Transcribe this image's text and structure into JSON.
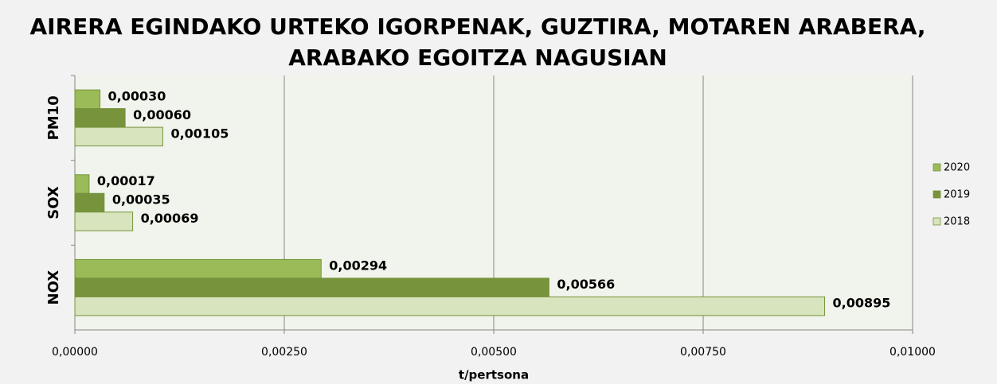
{
  "chart_data": {
    "type": "bar",
    "orientation": "horizontal",
    "title": "AIRERA EGINDAKO URTEKO IGORPENAK, GUZTIRA, MOTAREN ARABERA, ARABAKO EGOITZA NAGUSIAN",
    "x_label": "t/pertsona",
    "categories": [
      "PM10",
      "SOX",
      "NOX"
    ],
    "series": [
      {
        "name": "2020",
        "color": "#9bbb59",
        "values": [
          0.0003,
          0.00017,
          0.00294
        ],
        "value_labels": [
          "0,00030",
          "0,00017",
          "0,00294"
        ]
      },
      {
        "name": "2019",
        "color": "#77933c",
        "values": [
          0.0006,
          0.00035,
          0.00566
        ],
        "value_labels": [
          "0,00060",
          "0,00035",
          "0,00566"
        ]
      },
      {
        "name": "2018",
        "color": "#d7e4bd",
        "values": [
          0.00105,
          0.00069,
          0.00895
        ],
        "value_labels": [
          "0,00105",
          "0,00069",
          "0,00895"
        ]
      }
    ],
    "xlim": [
      0,
      0.01
    ],
    "xticks": [
      {
        "value": 0,
        "label": "0,00000"
      },
      {
        "value": 0.0025,
        "label": "0,00250"
      },
      {
        "value": 0.005,
        "label": "0,00500"
      },
      {
        "value": 0.0075,
        "label": "0,00750"
      },
      {
        "value": 0.01,
        "label": "0,01000"
      }
    ],
    "grid": true,
    "legend": "right"
  }
}
